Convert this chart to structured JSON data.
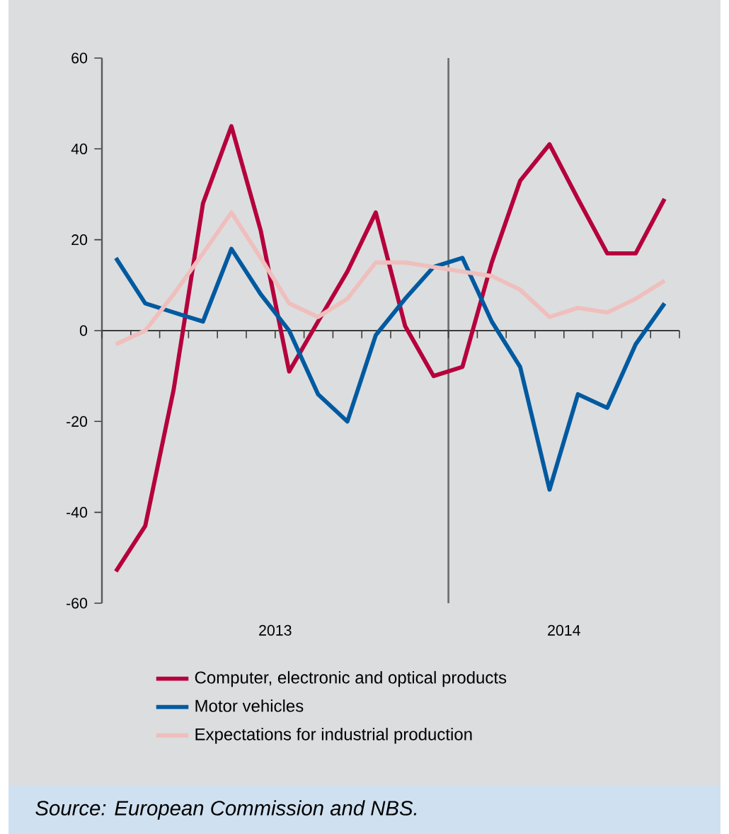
{
  "chart_data": {
    "type": "line",
    "x": [
      "2013-01-16",
      "2013-02-15",
      "2013-03-16",
      "2013-04-16",
      "2013-05-16",
      "2013-06-16",
      "2013-07-16",
      "2013-08-16",
      "2013-09-16",
      "2013-10-16",
      "2013-11-16",
      "2013-12-16",
      "2014-01-16",
      "2014-02-15",
      "2014-03-16",
      "2014-04-16",
      "2014-05-16",
      "2014-06-16",
      "2014-07-16",
      "2014-08-16"
    ],
    "series": [
      {
        "name": "Computer, electronic and optical products",
        "color": "#b5003c",
        "values": [
          -53,
          -43,
          -13,
          28,
          45,
          22,
          -9,
          2,
          13,
          26,
          1,
          -10,
          -8,
          15,
          33,
          41,
          29,
          17,
          17,
          29
        ]
      },
      {
        "name": "Motor vehicles",
        "color": "#005aa0",
        "values": [
          16,
          6,
          4,
          2,
          18,
          8,
          0,
          -14,
          -20,
          -1,
          7,
          14,
          16,
          2,
          -8,
          -35,
          -14,
          -17,
          -3,
          6
        ]
      },
      {
        "name": "Expectations for industrial production",
        "color": "#efbfbd",
        "values": [
          -3,
          0,
          8,
          17,
          26,
          16,
          6,
          3,
          7,
          15,
          15,
          14,
          13,
          12,
          9,
          3,
          5,
          4,
          7,
          11
        ]
      }
    ],
    "xlim": [
      "2013-01-01",
      "2014-09-01"
    ],
    "xticks": [
      {
        "value": "2013-01-01",
        "label": null
      },
      {
        "value": "2013-02-01",
        "label": null
      },
      {
        "value": "2013-03-01",
        "label": null
      },
      {
        "value": "2013-04-01",
        "label": null
      },
      {
        "value": "2013-05-01",
        "label": null
      },
      {
        "value": "2013-06-01",
        "label": null
      },
      {
        "value": "2013-07-01",
        "label": "2013"
      },
      {
        "value": "2013-08-01",
        "label": null
      },
      {
        "value": "2013-09-01",
        "label": null
      },
      {
        "value": "2013-10-01",
        "label": null
      },
      {
        "value": "2013-11-01",
        "label": null
      },
      {
        "value": "2013-12-01",
        "label": null
      },
      {
        "value": "2014-01-01",
        "label": null
      },
      {
        "value": "2014-02-01",
        "label": null
      },
      {
        "value": "2014-03-01",
        "label": null
      },
      {
        "value": "2014-04-01",
        "label": null
      },
      {
        "value": "2014-05-01",
        "label": "2014"
      },
      {
        "value": "2014-06-01",
        "label": null
      },
      {
        "value": "2014-07-01",
        "label": null
      },
      {
        "value": "2014-08-01",
        "label": null
      },
      {
        "value": "2014-09-01",
        "label": null
      }
    ],
    "ylim": [
      -60,
      60
    ],
    "yticks": [
      -60,
      -40,
      -20,
      0,
      20,
      40,
      60
    ],
    "ref_lines": [
      {
        "axis": "x",
        "value": "2014-01-01",
        "color": "#6e6e6e"
      }
    ],
    "legend": "bottom",
    "line_style": "solid",
    "marker": "none",
    "annotations": [
      "Source: European Commission and NBS."
    ]
  }
}
